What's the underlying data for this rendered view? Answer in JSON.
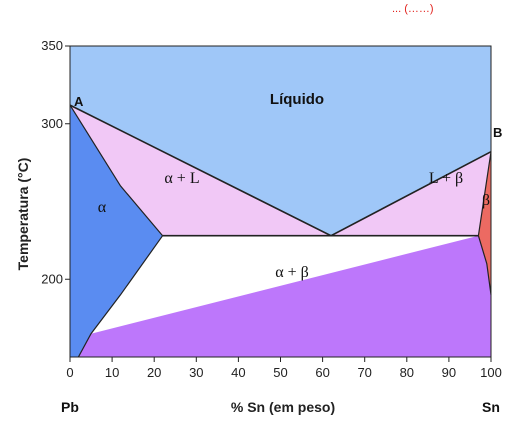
{
  "top_fragment": "... (……)",
  "axes": {
    "y_title": "Temperatura (°C)",
    "x_title": "% Sn (em peso)",
    "x_ticks": [
      "0",
      "10",
      "20",
      "30",
      "40",
      "50",
      "60",
      "70",
      "80",
      "90",
      "100"
    ],
    "y_ticks": [
      "350",
      "300",
      "200"
    ],
    "x_left_end": "Pb",
    "x_right_end": "Sn"
  },
  "points": {
    "A": "A",
    "B": "B"
  },
  "phases": {
    "liquid": "Líquido",
    "alpha": "α",
    "alpha_liquid": "α + L",
    "liquid_beta": "L + β",
    "beta": "β",
    "alpha_beta": "α + β"
  },
  "colors": {
    "liquid": "#9fc7f8",
    "alpha": "#5a8cf1",
    "two_phase_liquid": "#f1c8f6",
    "alpha_beta": "#bd77fb",
    "beta": "#ec6a62",
    "line": "#222222",
    "top_text": "#e2211c"
  },
  "chart_data": {
    "type": "phase-diagram",
    "system": [
      "Pb",
      "Sn"
    ],
    "xlim": [
      0,
      100
    ],
    "ylim": [
      150,
      350
    ],
    "melting_points": {
      "Pb": 312,
      "Sn": 282
    },
    "eutectic": {
      "composition_wt_pct_Sn": 62,
      "temperature_C": 228
    },
    "alpha_max_solubility_wt_pct_Sn": 22,
    "beta_min_wt_pct_Sn": 97,
    "liquidus": [
      [
        0,
        312
      ],
      [
        62,
        228
      ],
      [
        100,
        282
      ]
    ],
    "eutectic_line": [
      [
        22,
        228
      ],
      [
        97,
        228
      ]
    ],
    "alpha_solidus": [
      [
        0,
        312
      ],
      [
        12,
        260
      ],
      [
        22,
        228
      ]
    ],
    "alpha_solvus": [
      [
        22,
        228
      ],
      [
        12,
        190
      ],
      [
        5,
        165
      ],
      [
        2,
        150
      ]
    ],
    "beta_solidus": [
      [
        100,
        282
      ],
      [
        97,
        228
      ]
    ],
    "beta_solvus": [
      [
        97,
        228
      ],
      [
        99,
        210
      ],
      [
        100,
        190
      ]
    ]
  }
}
